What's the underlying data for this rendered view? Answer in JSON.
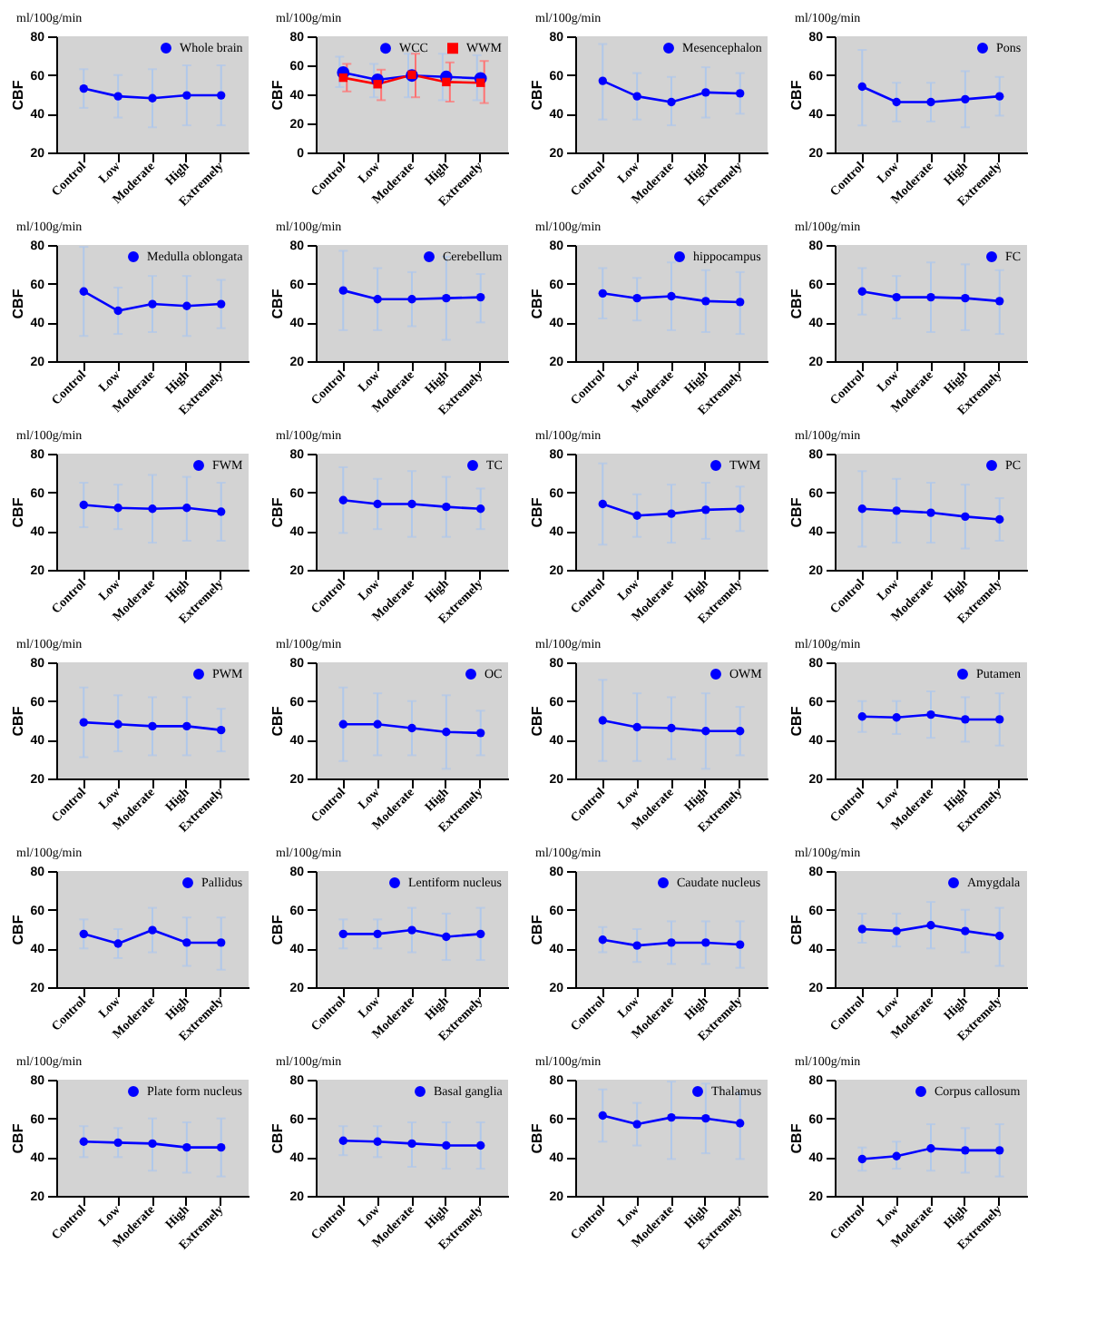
{
  "chart_data": [
    {
      "type": "line",
      "annotations": [
        "ml/100g/min"
      ],
      "ylabel": "CBF",
      "categories": [
        "Control",
        "Low",
        "Moderate",
        "High",
        "Extremely"
      ],
      "ylim": [
        20,
        80
      ],
      "yticks": [
        20,
        40,
        60,
        80
      ],
      "grid": false,
      "legend": "top right",
      "marker": "circle",
      "line_style": "solid",
      "series": [
        {
          "name": "Whole brain",
          "color": "#0000ff",
          "values": [
            53,
            49,
            48,
            49.5,
            49.5
          ],
          "errors": [
            [
              43,
              63
            ],
            [
              38,
              60
            ],
            [
              33,
              63
            ],
            [
              34,
              65
            ],
            [
              34,
              65
            ]
          ]
        }
      ]
    },
    {
      "type": "line",
      "annotations": [
        "ml/100g/min"
      ],
      "ylabel": "CBF",
      "categories": [
        "Control",
        "Low",
        "Moderate",
        "High",
        "Extremely"
      ],
      "ylim": [
        0,
        80
      ],
      "yticks": [
        0,
        20,
        40,
        60,
        80
      ],
      "grid": false,
      "legend": "top right",
      "marker": "circle",
      "line_style": "solid",
      "series": [
        {
          "name": "WCC",
          "color": "#0000ff",
          "values": [
            55,
            50,
            53,
            52,
            51
          ],
          "errors": [
            [
              45,
              66
            ],
            [
              38,
              61
            ],
            [
              38,
              68
            ],
            [
              36,
              68
            ],
            [
              36,
              67
            ]
          ]
        },
        {
          "name": "WWM",
          "color": "#ff0000",
          "marker": "square",
          "values": [
            51.5,
            47,
            53.5,
            48.5,
            48
          ],
          "errors": [
            [
              42,
              61
            ],
            [
              36,
              57
            ],
            [
              38,
              68
            ],
            [
              35,
              62
            ],
            [
              34,
              63
            ]
          ]
        }
      ]
    },
    {
      "type": "line",
      "annotations": [
        "ml/100g/min"
      ],
      "ylabel": "CBF",
      "categories": [
        "Control",
        "Low",
        "Moderate",
        "High",
        "Extremely"
      ],
      "ylim": [
        20,
        80
      ],
      "yticks": [
        20,
        40,
        60,
        80
      ],
      "grid": false,
      "legend": "top right",
      "marker": "circle",
      "line_style": "solid",
      "series": [
        {
          "name": "Mesencephalon",
          "color": "#0000ff",
          "values": [
            57,
            49,
            46,
            51,
            50.5
          ],
          "errors": [
            [
              37,
              76
            ],
            [
              37,
              61
            ],
            [
              34,
              59
            ],
            [
              38,
              64
            ],
            [
              40,
              61
            ]
          ]
        }
      ]
    },
    {
      "type": "line",
      "annotations": [
        "ml/100g/min"
      ],
      "ylabel": "CBF",
      "categories": [
        "Control",
        "Low",
        "Moderate",
        "High",
        "Extremely"
      ],
      "ylim": [
        20,
        80
      ],
      "yticks": [
        20,
        40,
        60,
        80
      ],
      "grid": false,
      "legend": "top right",
      "marker": "circle",
      "line_style": "solid",
      "series": [
        {
          "name": "Pons",
          "color": "#0000ff",
          "values": [
            54,
            46,
            46,
            47.5,
            49
          ],
          "errors": [
            [
              34,
              73
            ],
            [
              36,
              56
            ],
            [
              36,
              56
            ],
            [
              33,
              62
            ],
            [
              39,
              59
            ]
          ]
        }
      ]
    },
    {
      "type": "line",
      "annotations": [
        "ml/100g/min"
      ],
      "ylabel": "CBF",
      "categories": [
        "Control",
        "Low",
        "Moderate",
        "High",
        "Extremely"
      ],
      "ylim": [
        20,
        80
      ],
      "yticks": [
        20,
        40,
        60,
        80
      ],
      "grid": false,
      "legend": "top right",
      "marker": "circle",
      "line_style": "solid",
      "series": [
        {
          "name": "Medulla oblongata",
          "color": "#0000ff",
          "values": [
            56,
            46,
            49.5,
            48.5,
            49.5
          ],
          "errors": [
            [
              33,
              79
            ],
            [
              34,
              58
            ],
            [
              35,
              64
            ],
            [
              33,
              64
            ],
            [
              37,
              62
            ]
          ]
        }
      ]
    },
    {
      "type": "line",
      "annotations": [
        "ml/100g/min"
      ],
      "ylabel": "CBF",
      "categories": [
        "Control",
        "Low",
        "Moderate",
        "High",
        "Extremely"
      ],
      "ylim": [
        20,
        80
      ],
      "yticks": [
        20,
        40,
        60,
        80
      ],
      "grid": false,
      "legend": "top right",
      "marker": "circle",
      "line_style": "solid",
      "series": [
        {
          "name": "Cerebellum",
          "color": "#0000ff",
          "values": [
            56.5,
            52,
            52,
            52.5,
            53
          ],
          "errors": [
            [
              36,
              77
            ],
            [
              36,
              68
            ],
            [
              38,
              66
            ],
            [
              31,
              74
            ],
            [
              40,
              65
            ]
          ]
        }
      ]
    },
    {
      "type": "line",
      "annotations": [
        "ml/100g/min"
      ],
      "ylabel": "CBF",
      "categories": [
        "Control",
        "Low",
        "Moderate",
        "High",
        "Extremely"
      ],
      "ylim": [
        20,
        80
      ],
      "yticks": [
        20,
        40,
        60,
        80
      ],
      "grid": false,
      "legend": "top right",
      "marker": "circle",
      "line_style": "solid",
      "series": [
        {
          "name": "hippocampus",
          "color": "#0000ff",
          "values": [
            55,
            52.5,
            53.5,
            51,
            50.5
          ],
          "errors": [
            [
              42,
              68
            ],
            [
              41,
              63
            ],
            [
              36,
              71
            ],
            [
              35,
              67
            ],
            [
              34,
              66
            ]
          ]
        }
      ]
    },
    {
      "type": "line",
      "annotations": [
        "ml/100g/min"
      ],
      "ylabel": "CBF",
      "categories": [
        "Control",
        "Low",
        "Moderate",
        "High",
        "Extremely"
      ],
      "ylim": [
        20,
        80
      ],
      "yticks": [
        20,
        40,
        60,
        80
      ],
      "grid": false,
      "legend": "top right",
      "marker": "circle",
      "line_style": "solid",
      "series": [
        {
          "name": "FC",
          "color": "#0000ff",
          "values": [
            56,
            53,
            53,
            52.5,
            51
          ],
          "errors": [
            [
              44,
              68
            ],
            [
              42,
              64
            ],
            [
              35,
              71
            ],
            [
              36,
              70
            ],
            [
              34,
              67
            ]
          ]
        }
      ]
    },
    {
      "type": "line",
      "annotations": [
        "ml/100g/min"
      ],
      "ylabel": "CBF",
      "categories": [
        "Control",
        "Low",
        "Moderate",
        "High",
        "Extremely"
      ],
      "ylim": [
        20,
        80
      ],
      "yticks": [
        20,
        40,
        60,
        80
      ],
      "grid": false,
      "legend": "top right",
      "marker": "circle",
      "line_style": "solid",
      "series": [
        {
          "name": "FWM",
          "color": "#0000ff",
          "values": [
            53.5,
            52,
            51.5,
            52,
            50
          ],
          "errors": [
            [
              42,
              65
            ],
            [
              41,
              64
            ],
            [
              34,
              69
            ],
            [
              35,
              68
            ],
            [
              35,
              65
            ]
          ]
        }
      ]
    },
    {
      "type": "line",
      "annotations": [
        "ml/100g/min"
      ],
      "ylabel": "CBF",
      "categories": [
        "Control",
        "Low",
        "Moderate",
        "High",
        "Extremely"
      ],
      "ylim": [
        20,
        80
      ],
      "yticks": [
        20,
        40,
        60,
        80
      ],
      "grid": false,
      "legend": "top right",
      "marker": "circle",
      "line_style": "solid",
      "series": [
        {
          "name": "TC",
          "color": "#0000ff",
          "values": [
            56,
            54,
            54,
            52.5,
            51.5
          ],
          "errors": [
            [
              39,
              73
            ],
            [
              41,
              67
            ],
            [
              37,
              71
            ],
            [
              37,
              68
            ],
            [
              41,
              62
            ]
          ]
        }
      ]
    },
    {
      "type": "line",
      "annotations": [
        "ml/100g/min"
      ],
      "ylabel": "CBF",
      "categories": [
        "Control",
        "Low",
        "Moderate",
        "High",
        "Extremely"
      ],
      "ylim": [
        20,
        80
      ],
      "yticks": [
        20,
        40,
        60,
        80
      ],
      "grid": false,
      "legend": "top right",
      "marker": "circle",
      "line_style": "solid",
      "series": [
        {
          "name": "TWM",
          "color": "#0000ff",
          "values": [
            54,
            48,
            49,
            51,
            51.5
          ],
          "errors": [
            [
              33,
              75
            ],
            [
              37,
              59
            ],
            [
              34,
              64
            ],
            [
              36,
              65
            ],
            [
              40,
              63
            ]
          ]
        }
      ]
    },
    {
      "type": "line",
      "annotations": [
        "ml/100g/min"
      ],
      "ylabel": "CBF",
      "categories": [
        "Control",
        "Low",
        "Moderate",
        "High",
        "Extremely"
      ],
      "ylim": [
        20,
        80
      ],
      "yticks": [
        20,
        40,
        60,
        80
      ],
      "grid": false,
      "legend": "top right",
      "marker": "circle",
      "line_style": "solid",
      "series": [
        {
          "name": "PC",
          "color": "#0000ff",
          "values": [
            51.5,
            50.5,
            49.5,
            47.5,
            46
          ],
          "errors": [
            [
              32,
              71
            ],
            [
              34,
              67
            ],
            [
              34,
              65
            ],
            [
              31,
              64
            ],
            [
              35,
              57
            ]
          ]
        }
      ]
    },
    {
      "type": "line",
      "annotations": [
        "ml/100g/min"
      ],
      "ylabel": "CBF",
      "categories": [
        "Control",
        "Low",
        "Moderate",
        "High",
        "Extremely"
      ],
      "ylim": [
        20,
        80
      ],
      "yticks": [
        20,
        40,
        60,
        80
      ],
      "grid": false,
      "legend": "top right",
      "marker": "circle",
      "line_style": "solid",
      "series": [
        {
          "name": "PWM",
          "color": "#0000ff",
          "values": [
            49,
            48,
            47,
            47,
            45
          ],
          "errors": [
            [
              31,
              67
            ],
            [
              34,
              63
            ],
            [
              32,
              62
            ],
            [
              32,
              62
            ],
            [
              34,
              56
            ]
          ]
        }
      ]
    },
    {
      "type": "line",
      "annotations": [
        "ml/100g/min"
      ],
      "ylabel": "CBF",
      "categories": [
        "Control",
        "Low",
        "Moderate",
        "High",
        "Extremely"
      ],
      "ylim": [
        20,
        80
      ],
      "yticks": [
        20,
        40,
        60,
        80
      ],
      "grid": false,
      "legend": "top right",
      "marker": "circle",
      "line_style": "solid",
      "series": [
        {
          "name": "OC",
          "color": "#0000ff",
          "values": [
            48,
            48,
            46,
            44,
            43.5
          ],
          "errors": [
            [
              29,
              67
            ],
            [
              32,
              64
            ],
            [
              32,
              60
            ],
            [
              25,
              63
            ],
            [
              32,
              55
            ]
          ]
        }
      ]
    },
    {
      "type": "line",
      "annotations": [
        "ml/100g/min"
      ],
      "ylabel": "CBF",
      "categories": [
        "Control",
        "Low",
        "Moderate",
        "High",
        "Extremely"
      ],
      "ylim": [
        20,
        80
      ],
      "yticks": [
        20,
        40,
        60,
        80
      ],
      "grid": false,
      "legend": "top right",
      "marker": "circle",
      "line_style": "solid",
      "series": [
        {
          "name": "OWM",
          "color": "#0000ff",
          "values": [
            50,
            46.5,
            46,
            44.5,
            44.5
          ],
          "errors": [
            [
              29,
              71
            ],
            [
              29,
              64
            ],
            [
              30,
              62
            ],
            [
              25,
              64
            ],
            [
              32,
              57
            ]
          ]
        }
      ]
    },
    {
      "type": "line",
      "annotations": [
        "ml/100g/min"
      ],
      "ylabel": "CBF",
      "categories": [
        "Control",
        "Low",
        "Moderate",
        "High",
        "Extremely"
      ],
      "ylim": [
        20,
        80
      ],
      "yticks": [
        20,
        40,
        60,
        80
      ],
      "grid": false,
      "legend": "top right",
      "marker": "circle",
      "line_style": "solid",
      "series": [
        {
          "name": "Putamen",
          "color": "#0000ff",
          "values": [
            52,
            51.5,
            53,
            50.5,
            50.5
          ],
          "errors": [
            [
              44,
              60
            ],
            [
              43,
              60
            ],
            [
              41,
              65
            ],
            [
              39,
              62
            ],
            [
              37,
              64
            ]
          ]
        }
      ]
    },
    {
      "type": "line",
      "annotations": [
        "ml/100g/min"
      ],
      "ylabel": "CBF",
      "categories": [
        "Control",
        "Low",
        "Moderate",
        "High",
        "Extremely"
      ],
      "ylim": [
        20,
        80
      ],
      "yticks": [
        20,
        40,
        60,
        80
      ],
      "grid": false,
      "legend": "top right",
      "marker": "circle",
      "line_style": "solid",
      "series": [
        {
          "name": "Pallidus",
          "color": "#0000ff",
          "values": [
            47.5,
            42.5,
            49.5,
            43,
            43
          ],
          "errors": [
            [
              40,
              55
            ],
            [
              35,
              50
            ],
            [
              38,
              61
            ],
            [
              31,
              56
            ],
            [
              29,
              56
            ]
          ]
        }
      ]
    },
    {
      "type": "line",
      "annotations": [
        "ml/100g/min"
      ],
      "ylabel": "CBF",
      "categories": [
        "Control",
        "Low",
        "Moderate",
        "High",
        "Extremely"
      ],
      "ylim": [
        20,
        80
      ],
      "yticks": [
        20,
        40,
        60,
        80
      ],
      "grid": false,
      "legend": "top right",
      "marker": "circle",
      "line_style": "solid",
      "series": [
        {
          "name": "Lentiform nucleus",
          "color": "#0000ff",
          "values": [
            47.5,
            47.5,
            49.5,
            46,
            47.5
          ],
          "errors": [
            [
              40,
              55
            ],
            [
              40,
              55
            ],
            [
              38,
              61
            ],
            [
              34,
              58
            ],
            [
              34,
              61
            ]
          ]
        }
      ]
    },
    {
      "type": "line",
      "annotations": [
        "ml/100g/min"
      ],
      "ylabel": "CBF",
      "categories": [
        "Control",
        "Low",
        "Moderate",
        "High",
        "Extremely"
      ],
      "ylim": [
        20,
        80
      ],
      "yticks": [
        20,
        40,
        60,
        80
      ],
      "grid": false,
      "legend": "top right",
      "marker": "circle",
      "line_style": "solid",
      "series": [
        {
          "name": "Caudate nucleus",
          "color": "#0000ff",
          "values": [
            44.5,
            41.5,
            43,
            43,
            42
          ],
          "errors": [
            [
              38,
              51
            ],
            [
              33,
              50
            ],
            [
              32,
              54
            ],
            [
              32,
              54
            ],
            [
              30,
              54
            ]
          ]
        }
      ]
    },
    {
      "type": "line",
      "annotations": [
        "ml/100g/min"
      ],
      "ylabel": "CBF",
      "categories": [
        "Control",
        "Low",
        "Moderate",
        "High",
        "Extremely"
      ],
      "ylim": [
        20,
        80
      ],
      "yticks": [
        20,
        40,
        60,
        80
      ],
      "grid": false,
      "legend": "top right",
      "marker": "circle",
      "line_style": "solid",
      "series": [
        {
          "name": "Amygdala",
          "color": "#0000ff",
          "values": [
            50,
            49,
            52,
            49,
            46.5
          ],
          "errors": [
            [
              43,
              58
            ],
            [
              41,
              58
            ],
            [
              40,
              64
            ],
            [
              38,
              60
            ],
            [
              31,
              61
            ]
          ]
        }
      ]
    },
    {
      "type": "line",
      "annotations": [
        "ml/100g/min"
      ],
      "ylabel": "CBF",
      "categories": [
        "Control",
        "Low",
        "Moderate",
        "High",
        "Extremely"
      ],
      "ylim": [
        20,
        80
      ],
      "yticks": [
        20,
        40,
        60,
        80
      ],
      "grid": false,
      "legend": "top right",
      "marker": "circle",
      "line_style": "solid",
      "series": [
        {
          "name": "Plate form nucleus",
          "color": "#0000ff",
          "values": [
            48,
            47.5,
            47,
            45,
            45
          ],
          "errors": [
            [
              40,
              56
            ],
            [
              40,
              55
            ],
            [
              33,
              60
            ],
            [
              32,
              58
            ],
            [
              30,
              60
            ]
          ]
        }
      ]
    },
    {
      "type": "line",
      "annotations": [
        "ml/100g/min"
      ],
      "ylabel": "CBF",
      "categories": [
        "Control",
        "Low",
        "Moderate",
        "High",
        "Extremely"
      ],
      "ylim": [
        20,
        80
      ],
      "yticks": [
        20,
        40,
        60,
        80
      ],
      "grid": false,
      "legend": "top right",
      "marker": "circle",
      "line_style": "solid",
      "series": [
        {
          "name": "Basal ganglia",
          "color": "#0000ff",
          "values": [
            48.5,
            48,
            47,
            46,
            46
          ],
          "errors": [
            [
              41,
              56
            ],
            [
              40,
              56
            ],
            [
              35,
              58
            ],
            [
              34,
              58
            ],
            [
              34,
              58
            ]
          ]
        }
      ]
    },
    {
      "type": "line",
      "annotations": [
        "ml/100g/min"
      ],
      "ylabel": "CBF",
      "categories": [
        "Control",
        "Low",
        "Moderate",
        "High",
        "Extremely"
      ],
      "ylim": [
        20,
        80
      ],
      "yticks": [
        20,
        40,
        60,
        80
      ],
      "grid": false,
      "legend": "top right",
      "marker": "circle",
      "line_style": "solid",
      "series": [
        {
          "name": "Thalamus",
          "color": "#0000ff",
          "values": [
            61.5,
            57,
            60.5,
            60,
            57.5
          ],
          "errors": [
            [
              48,
              75
            ],
            [
              46,
              68
            ],
            [
              39,
              79
            ],
            [
              42,
              78
            ],
            [
              39,
              73
            ]
          ]
        }
      ]
    },
    {
      "type": "line",
      "annotations": [
        "ml/100g/min"
      ],
      "ylabel": "CBF",
      "categories": [
        "Control",
        "Low",
        "Moderate",
        "High",
        "Extremely"
      ],
      "ylim": [
        20,
        80
      ],
      "yticks": [
        20,
        40,
        60,
        80
      ],
      "grid": false,
      "legend": "top right",
      "marker": "circle",
      "line_style": "solid",
      "series": [
        {
          "name": "Corpus callosum",
          "color": "#0000ff",
          "values": [
            39,
            40.5,
            44.5,
            43.5,
            43.5
          ],
          "errors": [
            [
              33,
              45
            ],
            [
              34,
              48
            ],
            [
              33,
              57
            ],
            [
              32,
              55
            ],
            [
              30,
              57
            ]
          ]
        }
      ]
    }
  ]
}
